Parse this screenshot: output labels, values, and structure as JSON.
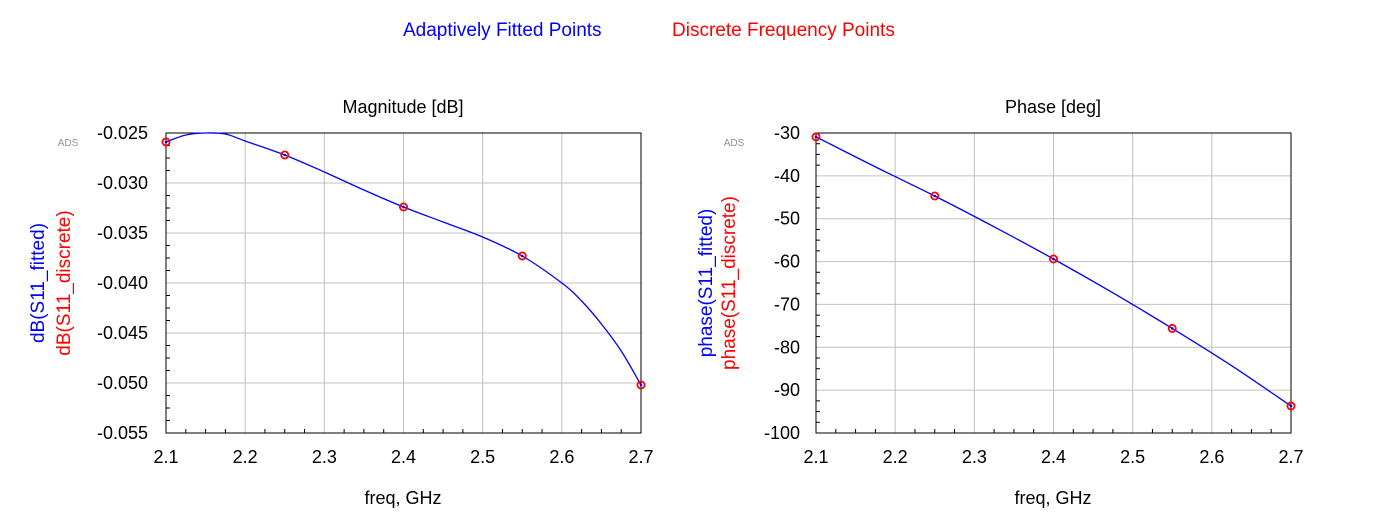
{
  "legend": {
    "fitted": "Adaptively Fitted Points",
    "discrete": "Discrete Frequency Points"
  },
  "colors": {
    "fitted": "#0000ff",
    "discrete": "#ff0000",
    "grid": "#c0c0c0",
    "axis": "#000000",
    "watermark": "#909090"
  },
  "chart_data": [
    {
      "type": "line",
      "title": "Magnitude [dB]",
      "xlabel": "freq, GHz",
      "ylabel_fitted": "dB(S11_fitted)",
      "ylabel_discrete": "dB(S11_discrete)",
      "watermark": "ADS",
      "xlim": [
        2.1,
        2.7
      ],
      "ylim": [
        -0.055,
        -0.025
      ],
      "x_ticks": [
        2.1,
        2.2,
        2.3,
        2.4,
        2.5,
        2.6,
        2.7
      ],
      "x_tick_labels": [
        "2.1",
        "2.2",
        "2.3",
        "2.4",
        "2.5",
        "2.6",
        "2.7"
      ],
      "y_ticks": [
        -0.025,
        -0.03,
        -0.035,
        -0.04,
        -0.045,
        -0.05,
        -0.055
      ],
      "y_tick_labels": [
        "-0.025",
        "-0.030",
        "-0.035",
        "-0.040",
        "-0.045",
        "-0.050",
        "-0.055"
      ],
      "grid": true,
      "series": [
        {
          "name": "dB(S11_fitted)",
          "x": [
            2.1,
            2.125,
            2.15,
            2.175,
            2.2,
            2.25,
            2.3,
            2.35,
            2.4,
            2.45,
            2.5,
            2.55,
            2.6,
            2.625,
            2.65,
            2.675,
            2.7
          ],
          "y": [
            -0.0259,
            -0.0252,
            -0.025,
            -0.0251,
            -0.0258,
            -0.0272,
            -0.0289,
            -0.0307,
            -0.0324,
            -0.0339,
            -0.0354,
            -0.0373,
            -0.04,
            -0.0418,
            -0.0441,
            -0.0468,
            -0.0502
          ]
        },
        {
          "name": "dB(S11_discrete)",
          "x": [
            2.1,
            2.25,
            2.4,
            2.55,
            2.7
          ],
          "y": [
            -0.0259,
            -0.0272,
            -0.0324,
            -0.0373,
            -0.0502
          ]
        }
      ]
    },
    {
      "type": "line",
      "title": "Phase [deg]",
      "xlabel": "freq, GHz",
      "ylabel_fitted": "phase(S11_fitted)",
      "ylabel_discrete": "phase(S11_discrete)",
      "watermark": "ADS",
      "xlim": [
        2.1,
        2.7
      ],
      "ylim": [
        -100,
        -30
      ],
      "x_ticks": [
        2.1,
        2.2,
        2.3,
        2.4,
        2.5,
        2.6,
        2.7
      ],
      "x_tick_labels": [
        "2.1",
        "2.2",
        "2.3",
        "2.4",
        "2.5",
        "2.6",
        "2.7"
      ],
      "y_ticks": [
        -30,
        -40,
        -50,
        -60,
        -70,
        -80,
        -90,
        -100
      ],
      "y_tick_labels": [
        "-30",
        "-40",
        "-50",
        "-60",
        "-70",
        "-80",
        "-90",
        "-100"
      ],
      "grid": true,
      "series": [
        {
          "name": "phase(S11_fitted)",
          "x": [
            2.1,
            2.175,
            2.25,
            2.325,
            2.4,
            2.475,
            2.55,
            2.625,
            2.7
          ],
          "y": [
            -30.9,
            -37.9,
            -44.7,
            -51.9,
            -59.4,
            -67.3,
            -75.6,
            -84.3,
            -93.7
          ]
        },
        {
          "name": "phase(S11_discrete)",
          "x": [
            2.1,
            2.25,
            2.4,
            2.55,
            2.7
          ],
          "y": [
            -30.9,
            -44.7,
            -59.4,
            -75.6,
            -93.7
          ]
        }
      ]
    }
  ]
}
